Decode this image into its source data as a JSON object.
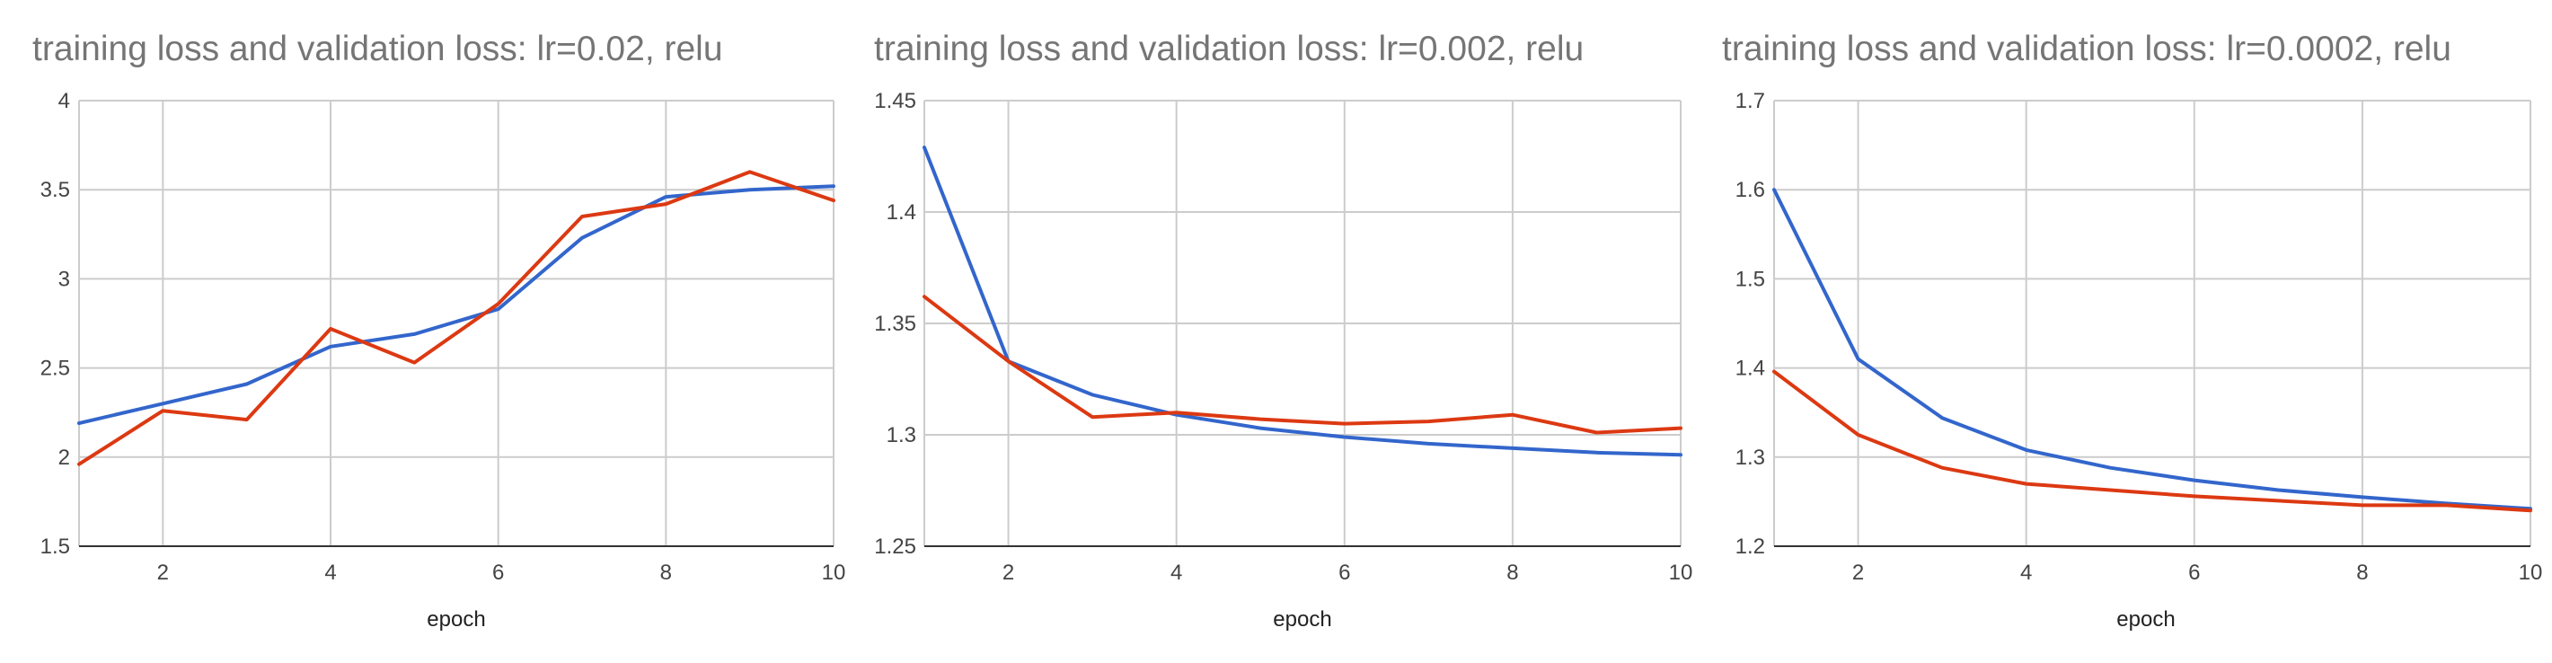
{
  "colors": {
    "training": "#3366cc",
    "validation": "#dc3912"
  },
  "chart_data": [
    {
      "type": "line",
      "title": "training loss and validation loss: lr=0.02, relu",
      "xlabel": "epoch",
      "ylabel": "",
      "xlim": [
        1,
        10
      ],
      "ylim": [
        1.5,
        4
      ],
      "x_ticks": [
        2,
        4,
        6,
        8,
        10
      ],
      "x_tick_labels": [
        "2",
        "4",
        "6",
        "8",
        "10"
      ],
      "y_ticks": [
        1.5,
        2,
        2.5,
        3,
        3.5,
        4
      ],
      "y_tick_labels": [
        "1.5",
        "2",
        "2.5",
        "3",
        "3.5",
        "4"
      ],
      "grid": true,
      "legend": "none",
      "x": [
        1,
        2,
        3,
        4,
        5,
        6,
        7,
        8,
        9,
        10
      ],
      "series": [
        {
          "color": "#3366cc",
          "values": [
            2.19,
            2.3,
            2.41,
            2.62,
            2.69,
            2.83,
            3.23,
            3.46,
            3.5,
            3.52
          ]
        },
        {
          "color": "#dc3912",
          "values": [
            1.96,
            2.26,
            2.21,
            2.72,
            2.53,
            2.86,
            3.35,
            3.42,
            3.6,
            3.44
          ]
        }
      ]
    },
    {
      "type": "line",
      "title": "training loss and validation loss: lr=0.002, relu",
      "xlabel": "epoch",
      "ylabel": "",
      "xlim": [
        1,
        10
      ],
      "ylim": [
        1.25,
        1.45
      ],
      "x_ticks": [
        2,
        4,
        6,
        8,
        10
      ],
      "x_tick_labels": [
        "2",
        "4",
        "6",
        "8",
        "10"
      ],
      "y_ticks": [
        1.25,
        1.3,
        1.35,
        1.4,
        1.45
      ],
      "y_tick_labels": [
        "1.25",
        "1.3",
        "1.35",
        "1.4",
        "1.45"
      ],
      "grid": true,
      "legend": "none",
      "x": [
        1,
        2,
        3,
        4,
        5,
        6,
        7,
        8,
        9,
        10
      ],
      "series": [
        {
          "color": "#3366cc",
          "values": [
            1.429,
            1.333,
            1.318,
            1.309,
            1.303,
            1.299,
            1.296,
            1.294,
            1.292,
            1.291
          ]
        },
        {
          "color": "#dc3912",
          "values": [
            1.362,
            1.333,
            1.308,
            1.31,
            1.307,
            1.305,
            1.306,
            1.309,
            1.301,
            1.303
          ]
        }
      ]
    },
    {
      "type": "line",
      "title": "training loss and validation loss: lr=0.0002, relu",
      "xlabel": "epoch",
      "ylabel": "",
      "xlim": [
        1,
        10
      ],
      "ylim": [
        1.2,
        1.7
      ],
      "x_ticks": [
        2,
        4,
        6,
        8,
        10
      ],
      "x_tick_labels": [
        "2",
        "4",
        "6",
        "8",
        "10"
      ],
      "y_ticks": [
        1.2,
        1.3,
        1.4,
        1.5,
        1.6,
        1.7
      ],
      "y_tick_labels": [
        "1.2",
        "1.3",
        "1.4",
        "1.5",
        "1.6",
        "1.7"
      ],
      "grid": true,
      "legend": "none",
      "x": [
        1,
        2,
        3,
        4,
        5,
        6,
        7,
        8,
        9,
        10
      ],
      "series": [
        {
          "color": "#3366cc",
          "values": [
            1.6,
            1.41,
            1.344,
            1.308,
            1.288,
            1.274,
            1.263,
            1.255,
            1.248,
            1.242
          ]
        },
        {
          "color": "#dc3912",
          "values": [
            1.396,
            1.325,
            1.288,
            1.27,
            1.263,
            1.256,
            1.251,
            1.246,
            1.246,
            1.24
          ]
        }
      ]
    }
  ]
}
